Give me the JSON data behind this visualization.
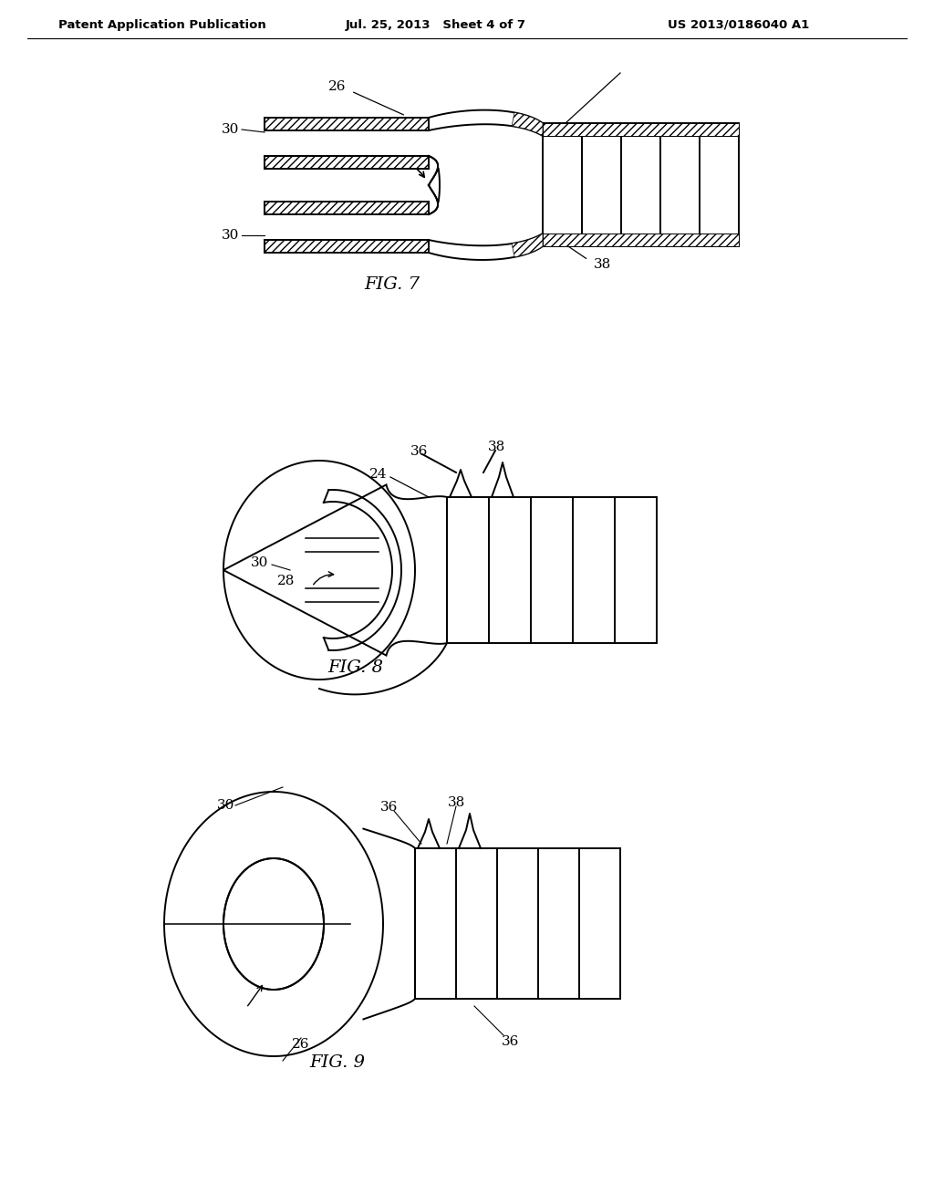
{
  "background_color": "#ffffff",
  "header_left": "Patent Application Publication",
  "header_center": "Jul. 25, 2013   Sheet 4 of 7",
  "header_right": "US 2013/0186040 A1",
  "fig7_label": "FIG. 7",
  "fig8_label": "FIG. 8",
  "fig9_label": "FIG. 9",
  "lw": 1.4
}
